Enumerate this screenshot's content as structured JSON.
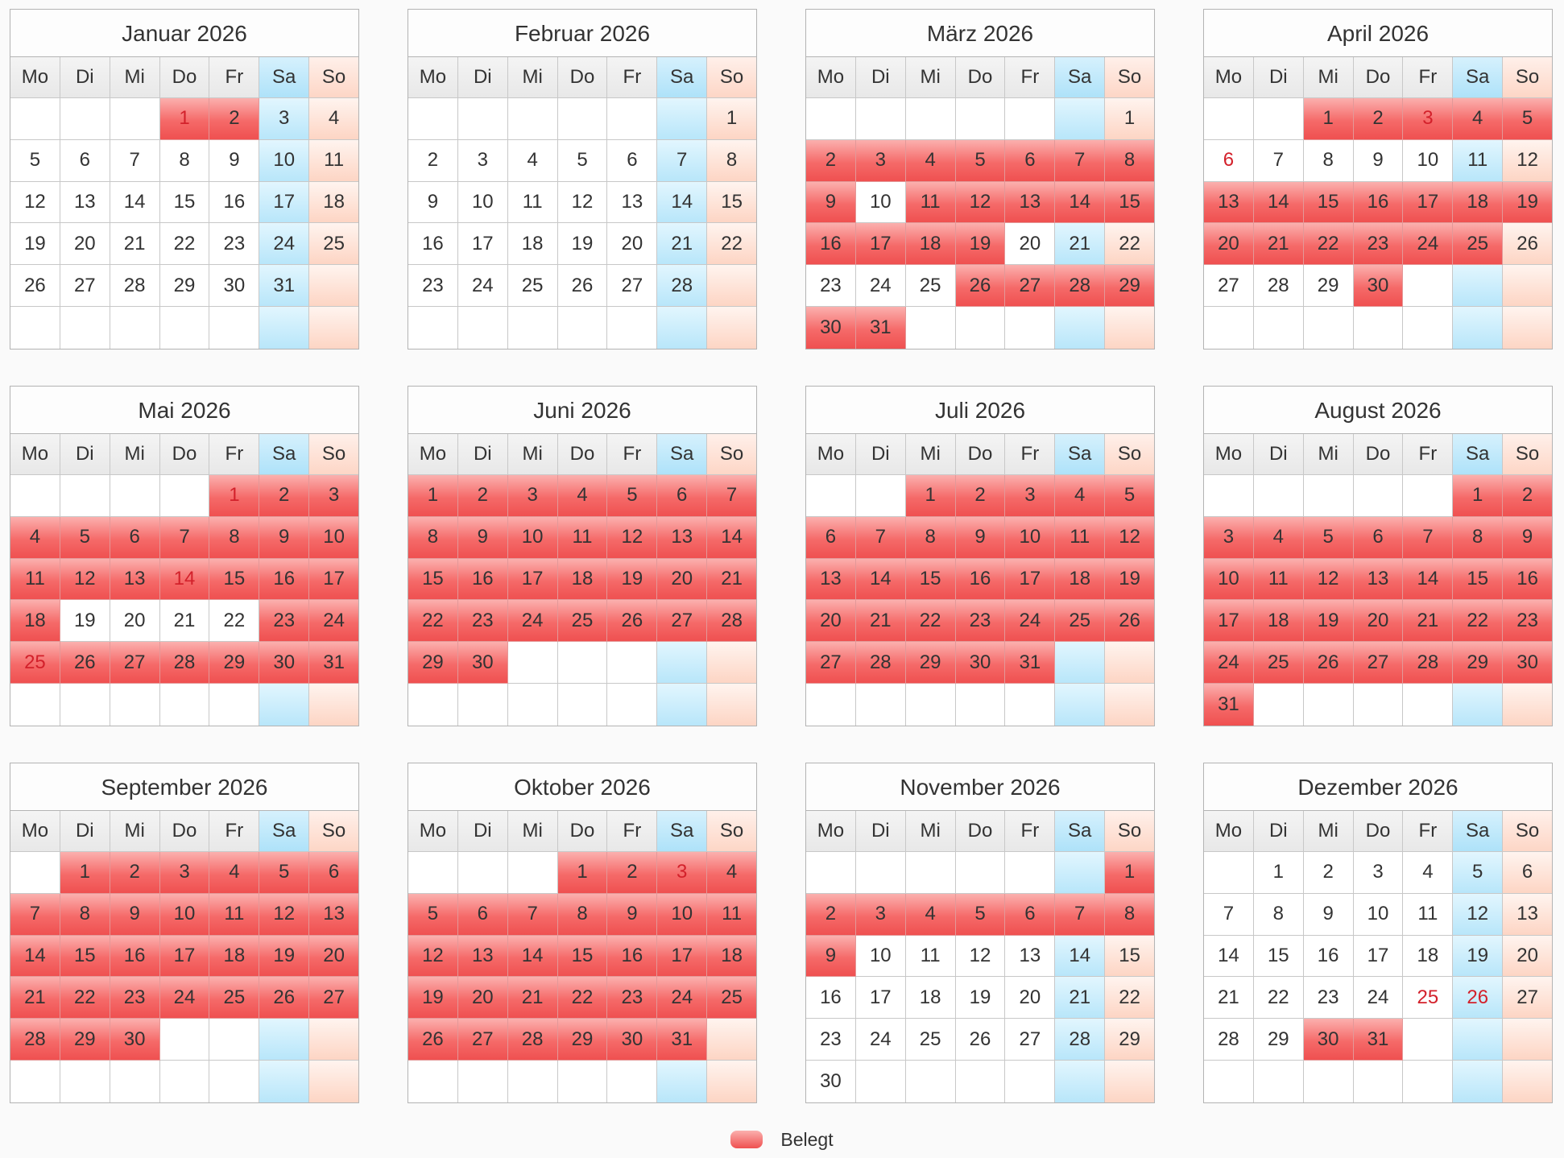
{
  "weekdays": [
    "Mo",
    "Di",
    "Mi",
    "Do",
    "Fr",
    "Sa",
    "So"
  ],
  "legend": {
    "label": "Belegt",
    "color": "#f06060"
  },
  "colors": {
    "busy": "#ef5050",
    "saturday": "#b8e6fa",
    "sunday": "#fdd5c4",
    "holiday_text": "#d3212b"
  },
  "months": [
    {
      "title": "Januar 2026",
      "startOffset": 3,
      "days": 31,
      "busy": [
        1,
        2
      ],
      "holidays": [
        1
      ]
    },
    {
      "title": "Februar 2026",
      "startOffset": 6,
      "days": 28,
      "busy": [],
      "holidays": []
    },
    {
      "title": "März 2026",
      "startOffset": 6,
      "days": 31,
      "busy": [
        2,
        3,
        4,
        5,
        6,
        7,
        8,
        9,
        11,
        12,
        13,
        14,
        15,
        16,
        17,
        18,
        19,
        26,
        27,
        28,
        29,
        30,
        31
      ],
      "holidays": []
    },
    {
      "title": "April 2026",
      "startOffset": 2,
      "days": 30,
      "busy": [
        1,
        2,
        3,
        4,
        5,
        13,
        14,
        15,
        16,
        17,
        18,
        19,
        20,
        21,
        22,
        23,
        24,
        25,
        30
      ],
      "holidays": [
        3,
        6
      ]
    },
    {
      "title": "Mai 2026",
      "startOffset": 4,
      "days": 31,
      "busy": [
        1,
        2,
        3,
        4,
        5,
        6,
        7,
        8,
        9,
        10,
        11,
        12,
        13,
        14,
        15,
        16,
        17,
        18,
        23,
        24,
        25,
        26,
        27,
        28,
        29,
        30,
        31
      ],
      "holidays": [
        1,
        14,
        25
      ]
    },
    {
      "title": "Juni 2026",
      "startOffset": 0,
      "days": 30,
      "busy": [
        1,
        2,
        3,
        4,
        5,
        6,
        7,
        8,
        9,
        10,
        11,
        12,
        13,
        14,
        15,
        16,
        17,
        18,
        19,
        20,
        21,
        22,
        23,
        24,
        25,
        26,
        27,
        28,
        29,
        30
      ],
      "holidays": []
    },
    {
      "title": "Juli 2026",
      "startOffset": 2,
      "days": 31,
      "busy": [
        1,
        2,
        3,
        4,
        5,
        6,
        7,
        8,
        9,
        10,
        11,
        12,
        13,
        14,
        15,
        16,
        17,
        18,
        19,
        20,
        21,
        22,
        23,
        24,
        25,
        26,
        27,
        28,
        29,
        30,
        31
      ],
      "holidays": []
    },
    {
      "title": "August 2026",
      "startOffset": 5,
      "days": 31,
      "busy": [
        1,
        2,
        3,
        4,
        5,
        6,
        7,
        8,
        9,
        10,
        11,
        12,
        13,
        14,
        15,
        16,
        17,
        18,
        19,
        20,
        21,
        22,
        23,
        24,
        25,
        26,
        27,
        28,
        29,
        30,
        31
      ],
      "holidays": []
    },
    {
      "title": "September 2026",
      "startOffset": 1,
      "days": 30,
      "busy": [
        1,
        2,
        3,
        4,
        5,
        6,
        7,
        8,
        9,
        10,
        11,
        12,
        13,
        14,
        15,
        16,
        17,
        18,
        19,
        20,
        21,
        22,
        23,
        24,
        25,
        26,
        27,
        28,
        29,
        30
      ],
      "holidays": []
    },
    {
      "title": "Oktober 2026",
      "startOffset": 3,
      "days": 31,
      "busy": [
        1,
        2,
        3,
        4,
        5,
        6,
        7,
        8,
        9,
        10,
        11,
        12,
        13,
        14,
        15,
        16,
        17,
        18,
        19,
        20,
        21,
        22,
        23,
        24,
        25,
        26,
        27,
        28,
        29,
        30,
        31
      ],
      "holidays": [
        3
      ]
    },
    {
      "title": "November 2026",
      "startOffset": 6,
      "days": 30,
      "busy": [
        1,
        2,
        3,
        4,
        5,
        6,
        7,
        8,
        9
      ],
      "holidays": []
    },
    {
      "title": "Dezember 2026",
      "startOffset": 1,
      "days": 31,
      "busy": [
        30,
        31
      ],
      "holidays": [
        25,
        26
      ]
    }
  ]
}
